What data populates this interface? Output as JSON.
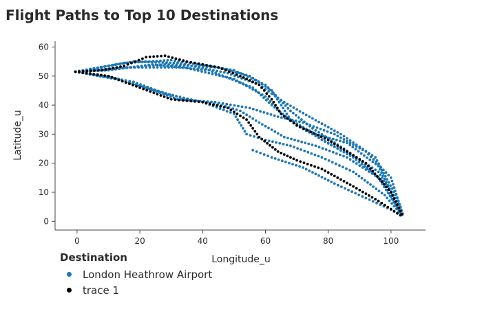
{
  "title": "Flight Paths to Top 10 Destinations",
  "chart_data": {
    "type": "scatter",
    "title": "Flight Paths to Top 10 Destinations",
    "xlabel": "Longitude_u",
    "ylabel": "Latitude_u",
    "xlim": [
      -7,
      111
    ],
    "ylim": [
      -3,
      62
    ],
    "xticks": [
      0,
      20,
      40,
      60,
      80,
      100
    ],
    "yticks": [
      0,
      10,
      20,
      30,
      40,
      50,
      60
    ],
    "grid": false,
    "legend_placement": "bottom-left",
    "legend_title": "Destination",
    "series": [
      {
        "name": "London Heathrow Airport",
        "color": "#1f77b4",
        "paths": [
          [
            [
              -0.5,
              51.5
            ],
            [
              12,
              52.5
            ],
            [
              28,
              54
            ],
            [
              45,
              53
            ],
            [
              55,
              50
            ],
            [
              62,
              45
            ],
            [
              68,
              35
            ],
            [
              78,
              28
            ],
            [
              88,
              22
            ],
            [
              97,
              14
            ],
            [
              103,
              3
            ],
            [
              104,
              1.4
            ]
          ],
          [
            [
              -0.5,
              51.5
            ],
            [
              15,
              54.5
            ],
            [
              30,
              55.5
            ],
            [
              50,
              52
            ],
            [
              60,
              47
            ],
            [
              68,
              38
            ],
            [
              75,
              32
            ],
            [
              85,
              25
            ],
            [
              96,
              17
            ],
            [
              103,
              5
            ],
            [
              104,
              1.4
            ]
          ],
          [
            [
              -0.5,
              51.5
            ],
            [
              18,
              55
            ],
            [
              32,
              54.5
            ],
            [
              48,
              51
            ],
            [
              58,
              47
            ],
            [
              66,
              41
            ],
            [
              74,
              36
            ],
            [
              84,
              30
            ],
            [
              95,
              22
            ],
            [
              102,
              8
            ],
            [
              104,
              1.4
            ]
          ],
          [
            [
              -0.5,
              51.5
            ],
            [
              10,
              50
            ],
            [
              22,
              46
            ],
            [
              32,
              42
            ],
            [
              44,
              41
            ],
            [
              55,
              39
            ],
            [
              64,
              36
            ],
            [
              72,
              34
            ],
            [
              82,
              30
            ],
            [
              92,
              24
            ],
            [
              100,
              15
            ],
            [
              104,
              1.4
            ]
          ],
          [
            [
              -0.5,
              51.5
            ],
            [
              12,
              49
            ],
            [
              25,
              45
            ],
            [
              35,
              42
            ],
            [
              46,
              40
            ],
            [
              52,
              38
            ],
            [
              58,
              34
            ],
            [
              66,
              29
            ],
            [
              76,
              26
            ],
            [
              86,
              22
            ],
            [
              96,
              15
            ],
            [
              104,
              1.4
            ]
          ],
          [
            [
              -0.5,
              51.5
            ],
            [
              8,
              50
            ],
            [
              18,
              48
            ],
            [
              28,
              44
            ],
            [
              40,
              41
            ],
            [
              50,
              37
            ],
            [
              54,
              30
            ],
            [
              60,
              28
            ],
            [
              68,
              26
            ],
            [
              78,
              22
            ],
            [
              88,
              17
            ],
            [
              98,
              9
            ],
            [
              104,
              1.4
            ]
          ],
          [
            [
              56,
              24.5
            ],
            [
              62,
              22
            ],
            [
              72,
              18.5
            ],
            [
              82,
              13
            ],
            [
              92,
              8
            ],
            [
              100,
              4
            ],
            [
              104,
              1.4
            ]
          ],
          [
            [
              -0.5,
              51.5
            ],
            [
              10,
              52
            ],
            [
              24,
              54
            ],
            [
              42,
              52
            ],
            [
              56,
              46
            ],
            [
              62,
              40
            ],
            [
              70,
              33
            ],
            [
              80,
              27
            ],
            [
              90,
              21
            ],
            [
              99,
              12
            ],
            [
              104,
              1.4
            ]
          ],
          [
            [
              -0.5,
              51.5
            ],
            [
              16,
              53
            ],
            [
              34,
              53
            ],
            [
              50,
              49
            ],
            [
              60,
              43
            ],
            [
              66,
              36
            ],
            [
              76,
              30
            ],
            [
              86,
              27
            ],
            [
              96,
              19
            ],
            [
              104,
              1.4
            ]
          ]
        ]
      },
      {
        "name": "trace 1",
        "color": "#000000",
        "paths": [
          [
            [
              -0.5,
              51.5
            ],
            [
              8,
              52
            ],
            [
              15,
              53.5
            ],
            [
              22,
              56.5
            ],
            [
              28,
              57
            ],
            [
              35,
              55
            ],
            [
              45,
              53
            ],
            [
              52,
              50
            ],
            [
              58,
              47
            ],
            [
              62,
              42
            ],
            [
              65,
              37
            ],
            [
              70,
              33
            ],
            [
              80,
              28
            ],
            [
              92,
              20
            ],
            [
              100,
              10
            ],
            [
              104,
              1.4
            ]
          ],
          [
            [
              -0.5,
              51.5
            ],
            [
              10,
              50
            ],
            [
              20,
              46
            ],
            [
              30,
              42
            ],
            [
              40,
              41
            ],
            [
              48,
              39
            ],
            [
              54,
              35
            ],
            [
              58,
              29
            ],
            [
              64,
              24
            ],
            [
              70,
              21
            ],
            [
              78,
              18
            ],
            [
              88,
              12
            ],
            [
              96,
              7
            ],
            [
              104,
              1.4
            ]
          ]
        ]
      }
    ]
  }
}
